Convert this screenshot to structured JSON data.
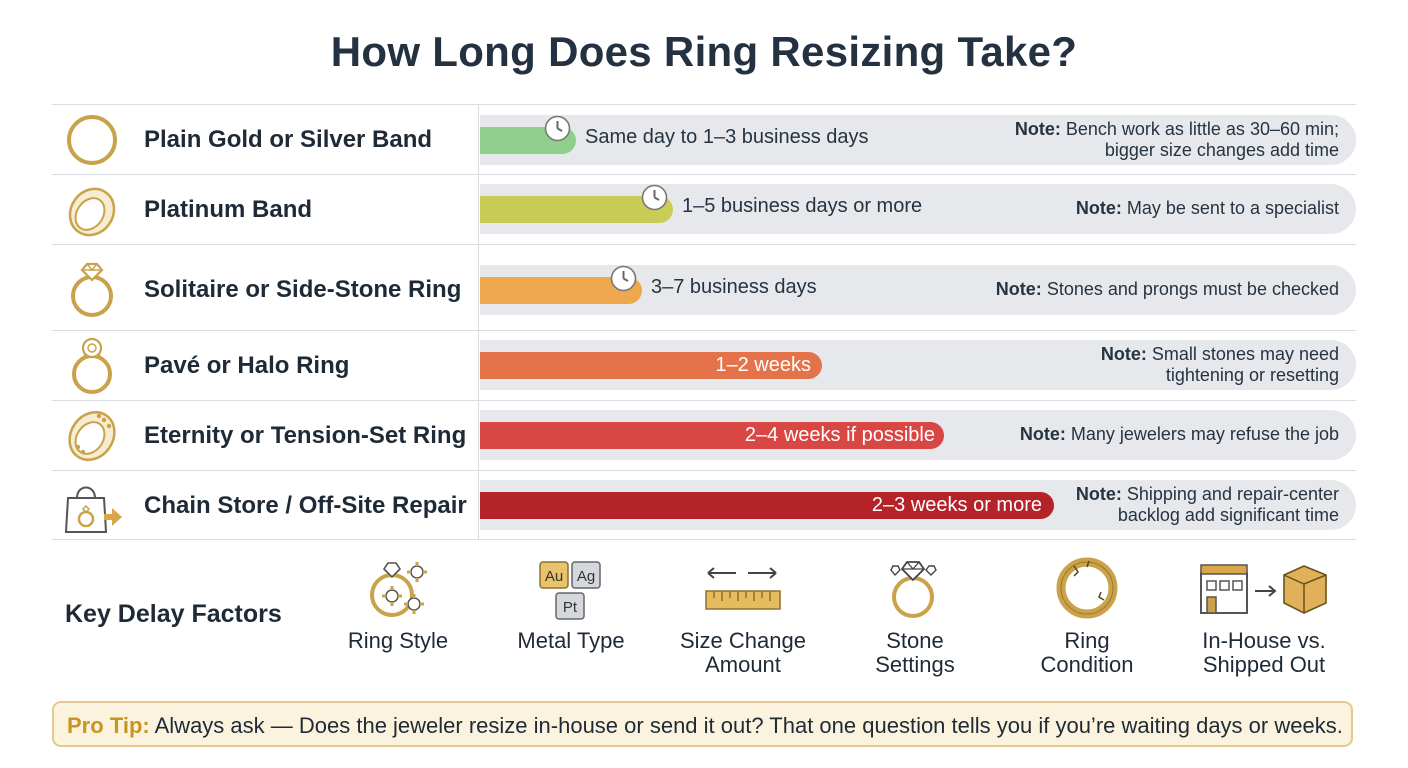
{
  "title": "How Long Does Ring Resizing Take?",
  "note_prefix": "Note:",
  "colors": {
    "gold": "#c9a24a",
    "track": "#e6e8ec"
  },
  "rows": [
    {
      "label": "Plain Gold or Silver Band",
      "icon": "plain-band-icon",
      "bar_color": "#8fd18c",
      "bar_fill": 0.11,
      "clock": true,
      "duration": "Same day to 1–3 business days",
      "note_l1": "Bench work as little as 30–60 min;",
      "note_l2": "bigger size changes add time"
    },
    {
      "label": "Platinum Band",
      "icon": "platinum-band-icon",
      "bar_color": "#c9cd57",
      "bar_fill": 0.22,
      "clock": true,
      "duration": "1–5 business days or more",
      "note_l1": "May be sent to a specialist",
      "note_l2": ""
    },
    {
      "label": "Solitaire or Side-Stone Ring",
      "icon": "solitaire-ring-icon",
      "bar_color": "#efa84d",
      "bar_fill": 0.185,
      "clock": true,
      "duration": "3–7 business days",
      "note_l1": "Stones and prongs must be checked",
      "note_l2": ""
    },
    {
      "label": "Pavé or Halo Ring",
      "icon": "halo-ring-icon",
      "bar_color": "#e4734a",
      "bar_fill": 0.39,
      "clock": false,
      "duration": "1–2 weeks",
      "note_l1": "Small stones may need",
      "note_l2": "tightening or resetting"
    },
    {
      "label": "Eternity or Tension-Set Ring",
      "icon": "eternity-ring-icon",
      "bar_color": "#d84744",
      "bar_fill": 0.53,
      "clock": false,
      "duration": "2–4 weeks if possible",
      "note_l1": "Many jewelers may refuse the job",
      "note_l2": ""
    },
    {
      "label": "Chain Store / Off-Site Repair",
      "icon": "shopping-bag-arrow-icon",
      "bar_color": "#b42327",
      "bar_fill": 0.655,
      "clock": false,
      "duration": "2–3 weeks or more",
      "note_l1": "Shipping and repair-center",
      "note_l2": "backlog add significant time"
    }
  ],
  "key_delay": {
    "title": "Key Delay Factors",
    "factors": [
      {
        "label_l1": "Ring Style",
        "label_l2": "",
        "icon": "ring-gears-icon"
      },
      {
        "label_l1": "Metal Type",
        "label_l2": "",
        "icon": "metal-elements-icon",
        "chips": [
          "Au",
          "Ag",
          "Pt"
        ]
      },
      {
        "label_l1": "Size Change",
        "label_l2": "Amount",
        "icon": "ruler-arrows-icon"
      },
      {
        "label_l1": "Stone",
        "label_l2": "Settings",
        "icon": "diamond-ring-icon"
      },
      {
        "label_l1": "Ring",
        "label_l2": "Condition",
        "icon": "cracked-ring-icon"
      },
      {
        "label_l1": "In-House vs.",
        "label_l2": "Shipped Out",
        "icon": "store-to-box-icon"
      }
    ]
  },
  "pro_tip": {
    "label": "Pro Tip:",
    "text": "Always ask — Does the jeweler resize in-house or send it out? That one question tells you if you’re waiting days or weeks."
  }
}
